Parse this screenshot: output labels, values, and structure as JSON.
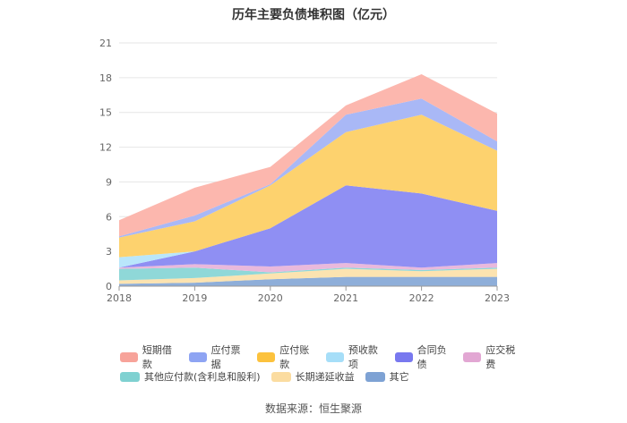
{
  "chart_data": {
    "type": "area",
    "stacked": true,
    "title": "历年主要负债堆积图（亿元）",
    "categories": [
      "2018",
      "2019",
      "2020",
      "2021",
      "2022",
      "2023"
    ],
    "y_ticks": [
      "0",
      "3",
      "6",
      "9",
      "12",
      "15",
      "18",
      "21"
    ],
    "ylim": [
      0,
      21
    ],
    "grid": true,
    "legend_position": "bottom",
    "series": [
      {
        "name": "其它",
        "color": "#8eaed9",
        "values": [
          0.2,
          0.3,
          0.6,
          0.8,
          0.8,
          0.8
        ]
      },
      {
        "name": "长期递延收益",
        "color": "#fce3b0",
        "values": [
          0.3,
          0.4,
          0.5,
          0.7,
          0.5,
          0.7
        ]
      },
      {
        "name": "其他应付款(含利息和股利)",
        "color": "#8fd8d8",
        "values": [
          1.0,
          0.9,
          0.1,
          0.1,
          0.1,
          0.1
        ]
      },
      {
        "name": "应交税费",
        "color": "#e9b9dc",
        "values": [
          0.1,
          0.3,
          0.5,
          0.4,
          0.2,
          0.4
        ]
      },
      {
        "name": "合同负债",
        "color": "#8f8ff3",
        "values": [
          0.0,
          1.1,
          3.3,
          6.7,
          6.4,
          4.5
        ]
      },
      {
        "name": "预收款项",
        "color": "#b9e6fb",
        "values": [
          0.9,
          0.0,
          0.0,
          0.0,
          0.0,
          0.0
        ]
      },
      {
        "name": "应付账款",
        "color": "#fdd26e",
        "values": [
          1.7,
          2.6,
          3.7,
          4.6,
          6.8,
          5.2
        ]
      },
      {
        "name": "应付票据",
        "color": "#a9b8f6",
        "values": [
          0.1,
          0.5,
          0.1,
          1.5,
          1.4,
          0.8
        ]
      },
      {
        "name": "短期借款",
        "color": "#fcb7ae",
        "values": [
          1.4,
          2.4,
          1.5,
          0.8,
          2.1,
          2.4
        ]
      }
    ]
  },
  "legend": {
    "row1": [
      {
        "label": "短期借款",
        "color": "#f7a39a"
      },
      {
        "label": "应付票据",
        "color": "#8ea4f3"
      },
      {
        "label": "应付账款",
        "color": "#fcc23d"
      },
      {
        "label": "预收款项",
        "color": "#a6def8"
      },
      {
        "label": "合同负债",
        "color": "#7878ef"
      },
      {
        "label": "应交税费",
        "color": "#e2a7d3"
      }
    ],
    "row2": [
      {
        "label": "其他应付款(含利息和股利)",
        "color": "#7fd1d1"
      },
      {
        "label": "长期递延收益",
        "color": "#fbdca0"
      },
      {
        "label": "其它",
        "color": "#7ea2d4"
      }
    ]
  },
  "source": "数据来源：恒生聚源"
}
